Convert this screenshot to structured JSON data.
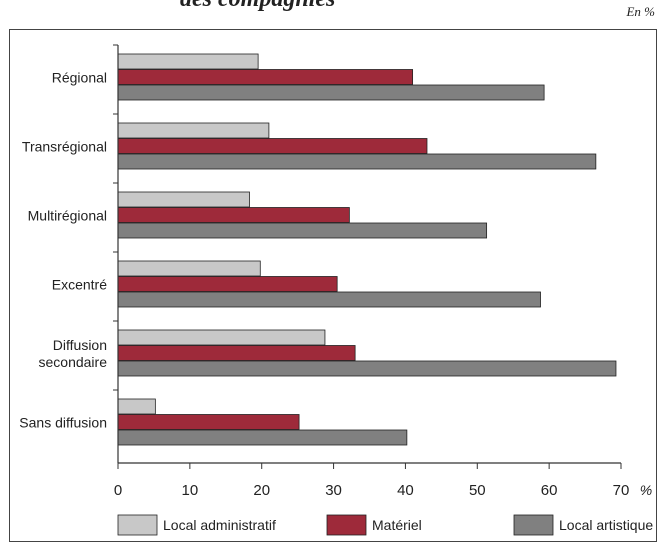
{
  "header": {
    "title_fragment": "des compagnies",
    "unit_note": "En %"
  },
  "colors": {
    "local_administratif": "#c8c8c8",
    "materiel": "#9e2a3a",
    "local_artistique": "#808080",
    "axis": "#333333"
  },
  "chart_data": {
    "type": "bar",
    "orientation": "horizontal",
    "categories": [
      [
        "Régional"
      ],
      [
        "Transrégional"
      ],
      [
        "Multirégional"
      ],
      [
        "Excentré"
      ],
      [
        "Diffusion",
        "secondaire"
      ],
      [
        "Sans diffusion"
      ]
    ],
    "series": [
      {
        "name": "Local administratif",
        "values": [
          19.5,
          21,
          18.3,
          19.8,
          28.8,
          5.2
        ]
      },
      {
        "name": "Matériel",
        "values": [
          41,
          43,
          32.2,
          30.5,
          33,
          25.2
        ]
      },
      {
        "name": "Local artistique",
        "values": [
          59.3,
          66.5,
          51.3,
          58.8,
          69.3,
          40.2
        ]
      }
    ],
    "xlim": [
      0,
      70
    ],
    "xticks": [
      0,
      10,
      20,
      30,
      40,
      50,
      60,
      70
    ],
    "xunit": "%",
    "grid": false,
    "legend_position": "bottom"
  }
}
